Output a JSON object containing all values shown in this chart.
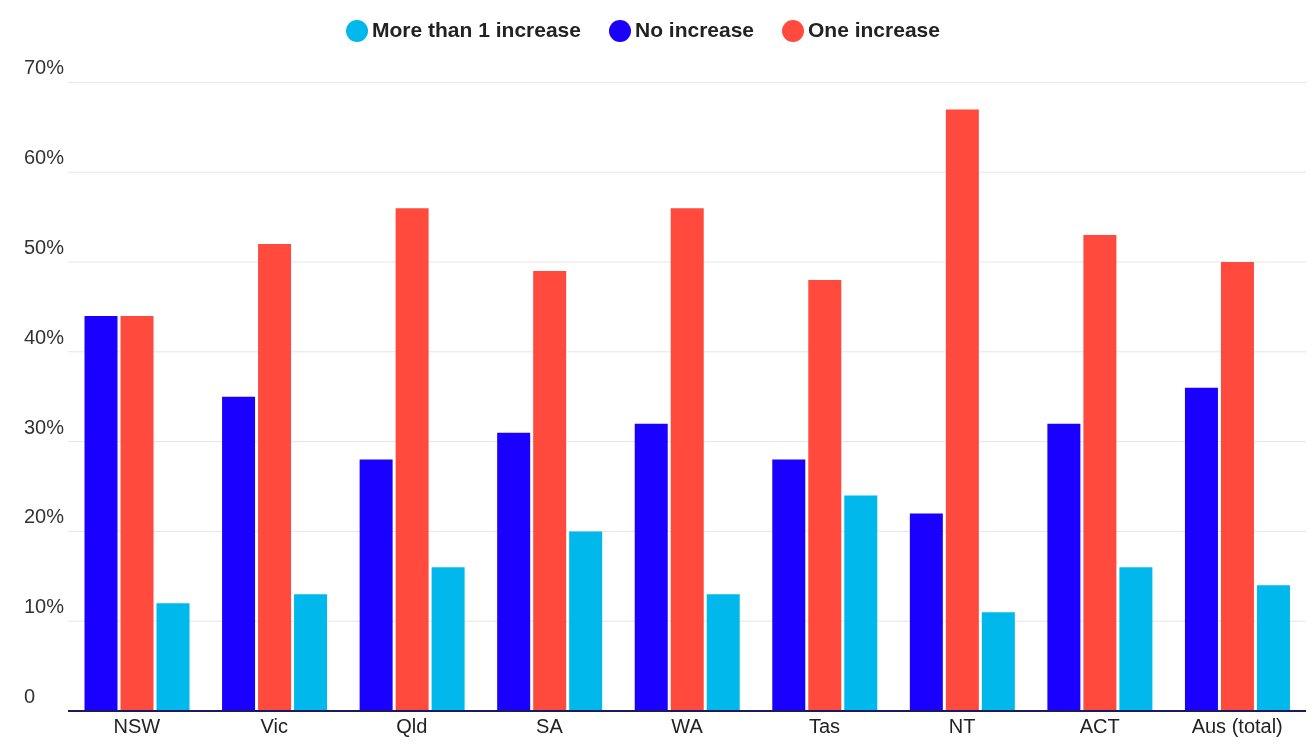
{
  "chart_data": {
    "type": "bar",
    "categories": [
      "NSW",
      "Vic",
      "Qld",
      "SA",
      "WA",
      "Tas",
      "NT",
      "ACT",
      "Aus (total)"
    ],
    "series": [
      {
        "name": "No increase",
        "color": "#1a00ff",
        "values": [
          44,
          35,
          28,
          31,
          32,
          28,
          22,
          32,
          36
        ]
      },
      {
        "name": "One increase",
        "color": "#ff4a3d",
        "values": [
          44,
          52,
          56,
          49,
          56,
          48,
          67,
          53,
          50
        ]
      },
      {
        "name": "More than 1 increase",
        "color": "#00b8eb",
        "values": [
          12,
          13,
          16,
          20,
          13,
          24,
          11,
          16,
          14
        ]
      }
    ],
    "ylim": [
      0,
      70
    ],
    "yticks": [
      {
        "value": 0,
        "label": "0"
      },
      {
        "value": 10,
        "label": "10%"
      },
      {
        "value": 20,
        "label": "20%"
      },
      {
        "value": 30,
        "label": "30%"
      },
      {
        "value": 40,
        "label": "40%"
      },
      {
        "value": 50,
        "label": "50%"
      },
      {
        "value": 60,
        "label": "60%"
      },
      {
        "value": 70,
        "label": "70%"
      }
    ],
    "grid": "y",
    "legend": "top"
  }
}
